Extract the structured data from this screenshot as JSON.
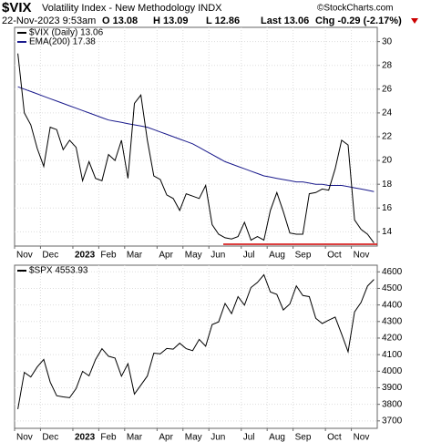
{
  "header": {
    "title": "$VIX",
    "subtitle": "Volatility Index - New Methodology INDX",
    "date": "22-Nov-2023 9:53am",
    "open": "O 13.08",
    "high": "H 13.09",
    "low": "L 12.86",
    "last": "Last 13.06",
    "change": "Chg -0.29 (-2.17%)",
    "source": "©StockCharts.com"
  },
  "chart_data": [
    {
      "type": "line",
      "categories": [
        "Nov",
        null,
        null,
        null,
        "Dec",
        null,
        null,
        null,
        null,
        "2023",
        null,
        null,
        null,
        "Feb",
        null,
        null,
        null,
        "Mar",
        null,
        null,
        null,
        null,
        "Apr",
        null,
        null,
        null,
        "May",
        null,
        null,
        null,
        "Jun",
        null,
        null,
        null,
        null,
        "Jul",
        null,
        null,
        null,
        "Aug",
        null,
        null,
        null,
        "Sep",
        null,
        null,
        null,
        null,
        "Oct",
        null,
        null,
        null,
        "Nov",
        null,
        null,
        null
      ],
      "series": [
        {
          "name": "$VIX (Daily) 13.06",
          "color": "#000000",
          "values": [
            29,
            24,
            23,
            21,
            19.5,
            22.8,
            22.6,
            20.9,
            21.7,
            21.1,
            18.3,
            19.9,
            18.5,
            18.3,
            20.5,
            20.0,
            21.7,
            18.5,
            24.8,
            25.5,
            21.7,
            18.7,
            18.4,
            17.1,
            16.8,
            15.8,
            17.2,
            17.0,
            16.8,
            17.9,
            14.6,
            13.8,
            13.5,
            13.4,
            13.6,
            14.8,
            13.3,
            13.6,
            13.3,
            15.8,
            17.3,
            15.7,
            13.9,
            13.8,
            13.8,
            17.2,
            17.3,
            17.6,
            17.5,
            19.3,
            21.7,
            21.3,
            15.0,
            14.2,
            13.8,
            13.06
          ]
        },
        {
          "name": "EMA(200) 17.38",
          "color": "#1a1a8c",
          "values": [
            26.2,
            26.0,
            25.8,
            25.6,
            25.4,
            25.2,
            25.0,
            24.8,
            24.6,
            24.4,
            24.2,
            24.0,
            23.8,
            23.6,
            23.4,
            23.3,
            23.2,
            23.1,
            23.0,
            22.9,
            22.8,
            22.6,
            22.4,
            22.2,
            22.0,
            21.8,
            21.6,
            21.4,
            21.1,
            20.8,
            20.5,
            20.2,
            19.9,
            19.7,
            19.5,
            19.3,
            19.1,
            18.9,
            18.7,
            18.6,
            18.5,
            18.4,
            18.3,
            18.2,
            18.2,
            18.1,
            18.0,
            18.0,
            17.9,
            17.9,
            17.9,
            17.8,
            17.7,
            17.6,
            17.5,
            17.38
          ]
        }
      ],
      "ylim": [
        12.8,
        31.2
      ],
      "yticks": [
        14,
        16,
        18,
        20,
        22,
        24,
        26,
        28,
        30
      ],
      "grid": true
    },
    {
      "type": "line",
      "categories": [
        "Nov",
        null,
        null,
        null,
        "Dec",
        null,
        null,
        null,
        null,
        "2023",
        null,
        null,
        null,
        "Feb",
        null,
        null,
        null,
        "Mar",
        null,
        null,
        null,
        null,
        "Apr",
        null,
        null,
        null,
        "May",
        null,
        null,
        null,
        "Jun",
        null,
        null,
        null,
        null,
        "Jul",
        null,
        null,
        null,
        "Aug",
        null,
        null,
        null,
        "Sep",
        null,
        null,
        null,
        null,
        "Oct",
        null,
        null,
        null,
        "Nov",
        null,
        null,
        null
      ],
      "series": [
        {
          "name": "$SPX 4553.93",
          "color": "#000000",
          "values": [
            3771,
            3993,
            3965,
            4026,
            4071,
            3934,
            3852,
            3845,
            3840,
            3895,
            3999,
            3972,
            4070,
            4136,
            4090,
            4079,
            3970,
            4045,
            3862,
            3916,
            3971,
            4109,
            4105,
            4137,
            4133,
            4169,
            4136,
            4124,
            4192,
            4151,
            4282,
            4298,
            4409,
            4348,
            4450,
            4399,
            4505,
            4536,
            4582,
            4478,
            4464,
            4370,
            4406,
            4515,
            4457,
            4450,
            4320,
            4288,
            4308,
            4327,
            4224,
            4117,
            4358,
            4415,
            4514,
            4553.93
          ]
        }
      ],
      "ylim": [
        3655,
        4640
      ],
      "yticks": [
        3700,
        3800,
        3900,
        4000,
        4100,
        4200,
        4300,
        4400,
        4500,
        4600
      ],
      "grid": true
    }
  ]
}
